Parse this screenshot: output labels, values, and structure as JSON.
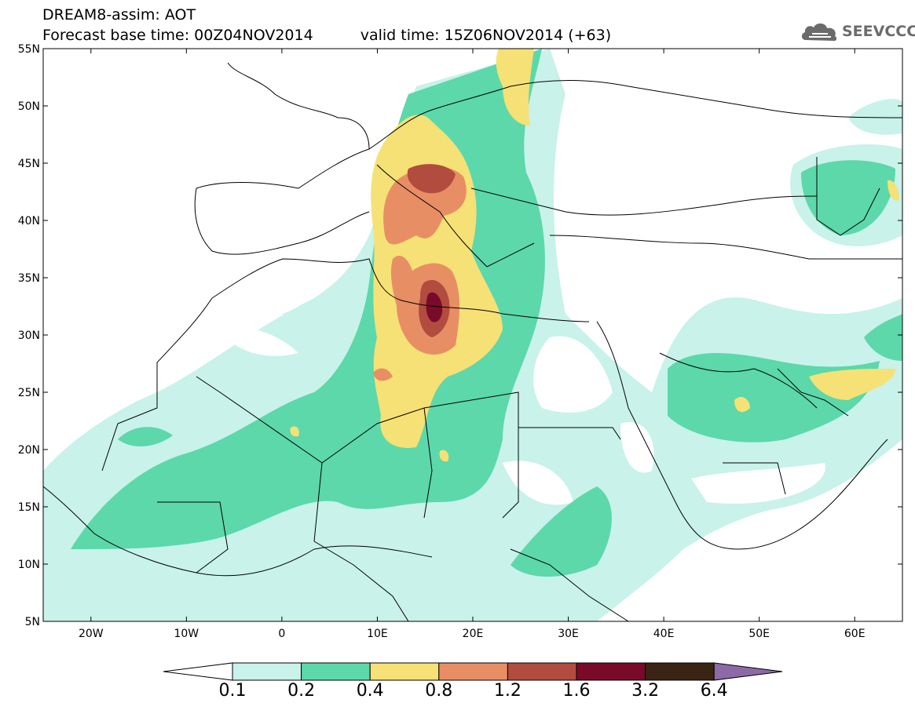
{
  "title": {
    "line1": "DREAM8-assim: AOT",
    "base_time": "Forecast base time: 00Z04NOV2014",
    "valid_time": "valid time: 15Z06NOV2014 (+63)"
  },
  "logo": {
    "text": "SEEVCCC",
    "icon": "cloud-icon"
  },
  "map": {
    "variable": "AOT",
    "projection": "lat-lon",
    "lon_range": [
      -25,
      65
    ],
    "lat_range": [
      5,
      55
    ],
    "lat_ticks": [
      "5N",
      "10N",
      "15N",
      "20N",
      "25N",
      "30N",
      "35N",
      "40N",
      "45N",
      "50N",
      "55N"
    ],
    "lon_ticks": [
      "20W",
      "10W",
      "0",
      "10E",
      "20E",
      "30E",
      "40E",
      "50E",
      "60E"
    ]
  },
  "legend": {
    "labels": [
      "0.1",
      "0.2",
      "0.4",
      "0.8",
      "1.2",
      "1.6",
      "3.2",
      "6.4"
    ],
    "colors": [
      "#ffffff",
      "#c8f2ea",
      "#5cd8ab",
      "#f5e175",
      "#e88e64",
      "#b24c3f",
      "#7a0a2a",
      "#3a2414",
      "#8c6aa8"
    ]
  }
}
